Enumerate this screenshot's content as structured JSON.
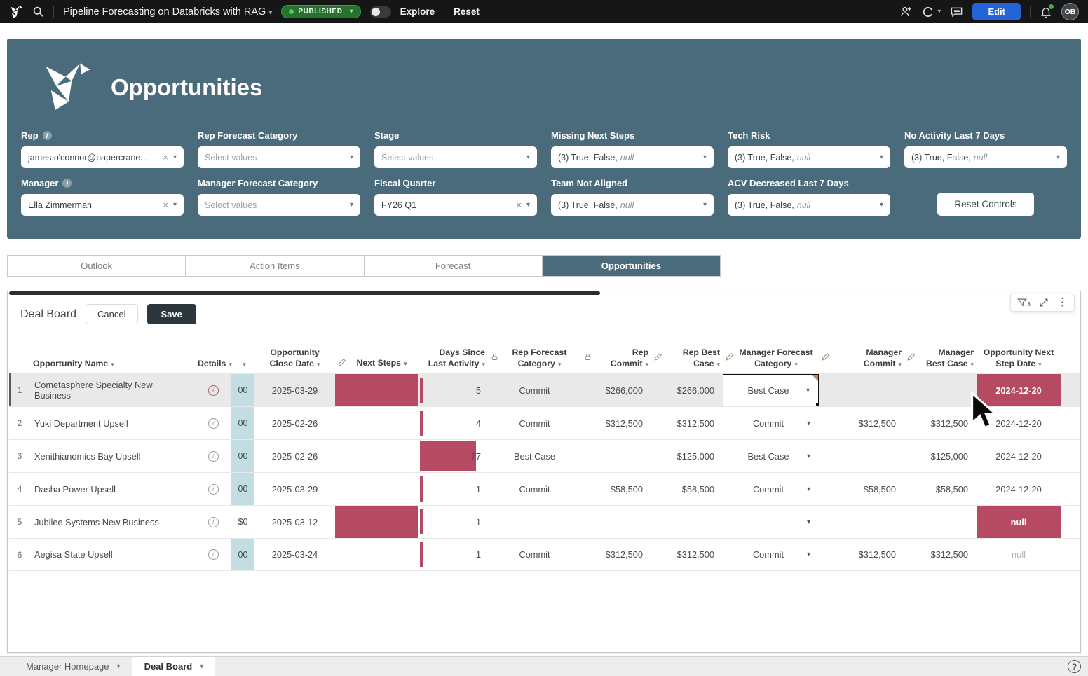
{
  "colors": {
    "teal_header": "#4a6b7b",
    "accent_red": "#b54a62",
    "stripe_teal": "#c2dee2",
    "published_green": "#26722f",
    "edit_blue": "#2563d9",
    "save_dark": "#2b373d"
  },
  "topbar": {
    "title": "Pipeline Forecasting on Databricks with RAG",
    "published": "PUBLISHED",
    "explore": "Explore",
    "reset": "Reset",
    "edit": "Edit",
    "avatar": "OB"
  },
  "page": {
    "title": "Opportunities"
  },
  "filters": {
    "row1": [
      {
        "label": "Rep",
        "info": true,
        "type": "chip",
        "value": "james.o'connor@papercrane....",
        "clear": true
      },
      {
        "label": "Rep Forecast Category",
        "type": "placeholder",
        "value": "Select values"
      },
      {
        "label": "Stage",
        "type": "placeholder",
        "value": "Select values"
      },
      {
        "label": "Missing Next Steps",
        "type": "summary",
        "value": "(3) True, False, ",
        "null_part": "null"
      },
      {
        "label": "Tech Risk",
        "type": "summary",
        "value": "(3) True, False, ",
        "null_part": "null"
      },
      {
        "label": "No Activity Last 7 Days",
        "type": "summary",
        "value": "(3) True, False, ",
        "null_part": "null"
      }
    ],
    "row2": [
      {
        "label": "Manager",
        "info": true,
        "type": "chip",
        "value": "Ella Zimmerman",
        "clear": true
      },
      {
        "label": "Manager Forecast Category",
        "type": "placeholder",
        "value": "Select values"
      },
      {
        "label": "Fiscal Quarter",
        "type": "chip",
        "value": "FY26 Q1",
        "clear": true
      },
      {
        "label": "Team Not Aligned",
        "type": "summary",
        "value": "(3) True, False, ",
        "null_part": "null"
      },
      {
        "label": "ACV Decreased Last 7 Days",
        "type": "summary",
        "value": "(3) True, False, ",
        "null_part": "null"
      },
      {
        "label": "Reset Controls",
        "type": "button"
      }
    ]
  },
  "tabs": [
    {
      "label": "Outlook",
      "active": false
    },
    {
      "label": "Action Items",
      "active": false
    },
    {
      "label": "Forecast",
      "active": false
    },
    {
      "label": "Opportunities",
      "active": true
    }
  ],
  "board": {
    "title": "Deal Board",
    "cancel": "Cancel",
    "save": "Save",
    "filter_count": "8"
  },
  "table": {
    "columns": [
      {
        "key": "name",
        "label": "Opportunity Name",
        "icon": "",
        "align": "left"
      },
      {
        "key": "details",
        "label": "Details",
        "icon": "",
        "align": "center"
      },
      {
        "key": "acv",
        "label": "",
        "icon": "",
        "align": "center"
      },
      {
        "key": "close",
        "label": "Opportunity Close Date",
        "icon": "",
        "align": "center"
      },
      {
        "key": "next",
        "label": "Next Steps",
        "icon": "pencil",
        "align": "center"
      },
      {
        "key": "days",
        "label": "Days Since Last Activity",
        "icon": "",
        "align": "right"
      },
      {
        "key": "repfc",
        "label": "Rep Forecast Category",
        "icon": "lock",
        "align": "center"
      },
      {
        "key": "repcommit",
        "label": "Rep Commit",
        "icon": "lock",
        "align": "right"
      },
      {
        "key": "repbest",
        "label": "Rep Best Case",
        "icon": "pencil",
        "align": "right"
      },
      {
        "key": "mgrfc",
        "label": "Manager Forecast Category",
        "icon": "pencil",
        "align": "center"
      },
      {
        "key": "mgrcommit",
        "label": "Manager Commit",
        "icon": "pencil",
        "align": "right"
      },
      {
        "key": "mgrbest",
        "label": "Manager Best Case",
        "icon": "pencil",
        "align": "right"
      },
      {
        "key": "nsd",
        "label": "Opportunity Next Step Date",
        "icon": "",
        "align": "center"
      }
    ],
    "rows": [
      {
        "num": "1",
        "name": "Cometasphere Specialty New Business",
        "acv": "00",
        "acv_teal": true,
        "close_date": "2025-03-29",
        "next_steps_missing": true,
        "days": "5",
        "days_bar": "thin",
        "rep_fc": "Commit",
        "rep_commit": "$266,000",
        "rep_best": "$266,000",
        "mgr_fc": "Best Case",
        "mgr_fc_selected": true,
        "mgr_commit": "",
        "mgr_best": "",
        "next_step_date": "2024-12-20",
        "nsd_style": "red",
        "selected": true
      },
      {
        "num": "2",
        "name": "Yuki Department Upsell",
        "acv": "00",
        "acv_teal": true,
        "close_date": "2025-02-26",
        "next_steps_missing": false,
        "days": "4",
        "days_bar": "thin",
        "rep_fc": "Commit",
        "rep_commit": "$312,500",
        "rep_best": "$312,500",
        "mgr_fc": "Commit",
        "mgr_fc_selected": false,
        "mgr_commit": "$312,500",
        "mgr_best": "$312,500",
        "next_step_date": "2024-12-20",
        "nsd_style": "plain",
        "selected": false
      },
      {
        "num": "3",
        "name": "Xenithianomics Bay Upsell",
        "acv": "00",
        "acv_teal": true,
        "close_date": "2025-02-26",
        "next_steps_missing": false,
        "days": "77",
        "days_bar": "wide",
        "rep_fc": "Best Case",
        "rep_commit": "",
        "rep_best": "$125,000",
        "mgr_fc": "Best Case",
        "mgr_fc_selected": false,
        "mgr_commit": "",
        "mgr_best": "$125,000",
        "next_step_date": "2024-12-20",
        "nsd_style": "plain",
        "selected": false
      },
      {
        "num": "4",
        "name": "Dasha Power Upsell",
        "acv": "00",
        "acv_teal": true,
        "close_date": "2025-03-29",
        "next_steps_missing": false,
        "days": "1",
        "days_bar": "thin",
        "rep_fc": "Commit",
        "rep_commit": "$58,500",
        "rep_best": "$58,500",
        "mgr_fc": "Commit",
        "mgr_fc_selected": false,
        "mgr_commit": "$58,500",
        "mgr_best": "$58,500",
        "next_step_date": "2024-12-20",
        "nsd_style": "plain",
        "selected": false
      },
      {
        "num": "5",
        "name": "Jubilee Systems New Business",
        "acv": "$0",
        "acv_teal": false,
        "close_date": "2025-03-12",
        "next_steps_missing": true,
        "days": "1",
        "days_bar": "thin",
        "rep_fc": "",
        "rep_commit": "",
        "rep_best": "",
        "mgr_fc": "",
        "mgr_fc_selected": false,
        "mgr_commit": "",
        "mgr_best": "",
        "next_step_date": "null",
        "nsd_style": "red",
        "selected": false
      },
      {
        "num": "6",
        "name": "Aegisa State Upsell",
        "acv": "00",
        "acv_teal": true,
        "close_date": "2025-03-24",
        "next_steps_missing": false,
        "days": "1",
        "days_bar": "thin",
        "rep_fc": "Commit",
        "rep_commit": "$312,500",
        "rep_best": "$312,500",
        "mgr_fc": "Commit",
        "mgr_fc_selected": false,
        "mgr_commit": "$312,500",
        "mgr_best": "$312,500",
        "next_step_date": "null",
        "nsd_style": "gray",
        "selected": false
      }
    ]
  },
  "footer": {
    "pages": [
      {
        "label": "Manager Homepage",
        "active": false
      },
      {
        "label": "Deal Board",
        "active": true
      }
    ]
  }
}
